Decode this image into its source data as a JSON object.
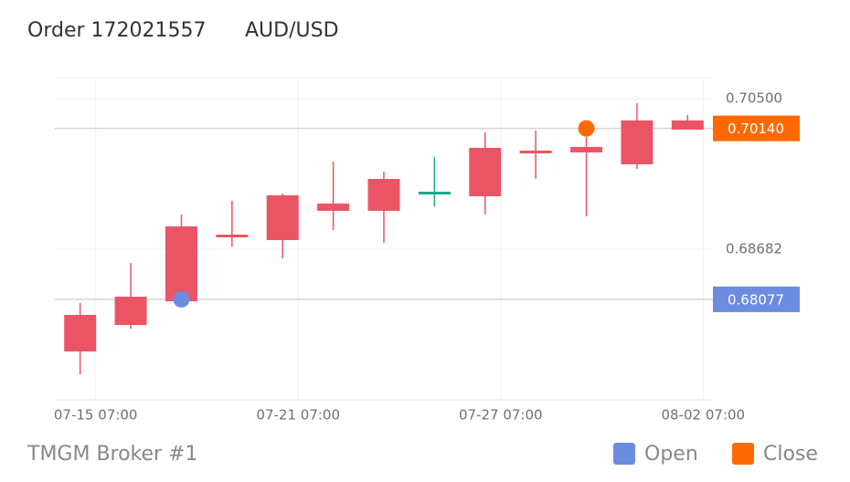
{
  "header": {
    "title": "Order 172021557",
    "symbol": "AUD/USD"
  },
  "chart_data": {
    "type": "candlestick",
    "categories": [
      "07-15 07:00",
      null,
      null,
      null,
      "07-21 07:00",
      null,
      null,
      null,
      "07-27 07:00",
      null,
      null,
      null,
      "08-02 07:00"
    ],
    "open": [
      0.67448,
      0.67767,
      0.68054,
      0.68825,
      0.68792,
      0.69145,
      0.69145,
      0.69376,
      0.69321,
      0.6985,
      0.6985,
      0.69707,
      0.70125
    ],
    "high": [
      0.68032,
      0.68516,
      0.691,
      0.69266,
      0.69354,
      0.6974,
      0.69618,
      0.69795,
      0.70092,
      0.70114,
      0.70037,
      0.70445,
      0.70302
    ],
    "low": [
      0.67173,
      0.67723,
      0.68054,
      0.68715,
      0.68571,
      0.68913,
      0.68759,
      0.692,
      0.691,
      0.6953,
      0.69078,
      0.69651,
      0.70125
    ],
    "close": [
      0.67889,
      0.68109,
      0.68957,
      0.68858,
      0.69332,
      0.69233,
      0.6953,
      0.69343,
      0.69905,
      0.69872,
      0.69916,
      0.70236,
      0.70236
    ],
    "up_color": "#eb5464",
    "down_color": "#1aa88b",
    "ylim": [
      0.66864,
      0.70753
    ],
    "yticks": [
      {
        "value": 0.705,
        "label": "0.70500"
      },
      0.68682
    ],
    "grid": true,
    "open_price": {
      "value": 0.68077,
      "label": "0.68077",
      "color": "#6c8ce0"
    },
    "close_price": {
      "value": 0.7014,
      "label": "0.70140",
      "color": "#ff6a00"
    }
  },
  "footer": {
    "broker": "TMGM Broker #1",
    "legend": [
      "Open",
      "Close"
    ]
  }
}
